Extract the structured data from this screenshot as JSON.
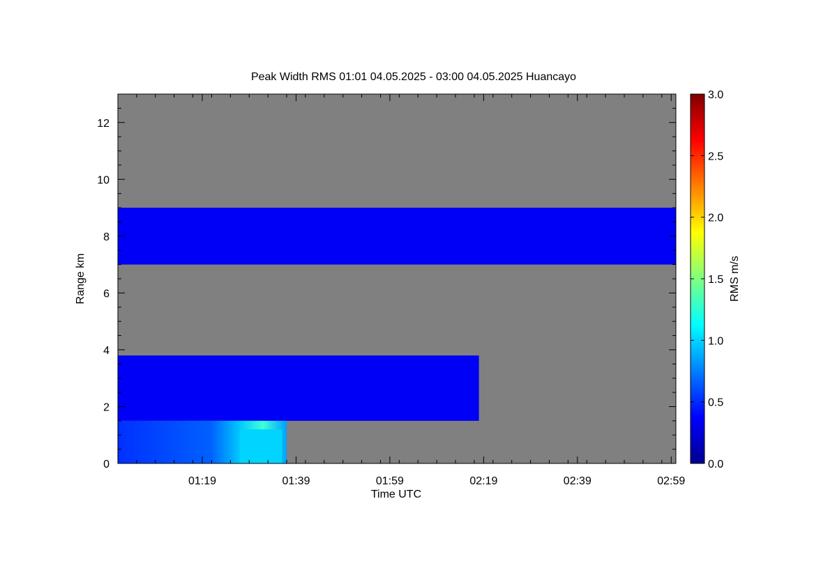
{
  "chart_data": {
    "type": "heatmap",
    "title": "Peak Width RMS   01:01 04.05.2025 - 03:00 04.05.2025 Huancayo",
    "xlabel": "Time UTC",
    "ylabel": "Range km",
    "colorbar_label": "RMS m/s",
    "background_color": "#808080",
    "xlim_minutes": [
      61,
      180
    ],
    "x_ticks": [
      {
        "label": "01:19",
        "minute": 79
      },
      {
        "label": "01:39",
        "minute": 99
      },
      {
        "label": "01:59",
        "minute": 119
      },
      {
        "label": "02:19",
        "minute": 139
      },
      {
        "label": "02:39",
        "minute": 159
      },
      {
        "label": "02:59",
        "minute": 179
      }
    ],
    "ylim": [
      0,
      13
    ],
    "y_ticks": [
      0,
      2,
      4,
      6,
      8,
      10,
      12
    ],
    "colorbar": {
      "range": [
        0.0,
        3.0
      ],
      "ticks": [
        "0.0",
        "0.5",
        "1.0",
        "1.5",
        "2.0",
        "2.5",
        "3.0"
      ],
      "colormap": "jet"
    },
    "regions": [
      {
        "name": "upper layer",
        "t_start": 61,
        "t_end": 180,
        "range_km": [
          7.0,
          9.0
        ],
        "rms": 0.35
      },
      {
        "name": "middle layer",
        "t_start": 61,
        "t_end": 138,
        "range_km": [
          1.5,
          3.8
        ],
        "rms": 0.35
      },
      {
        "name": "lower layer",
        "t_start": 61,
        "t_end": 97,
        "range_km": [
          0.0,
          1.5
        ],
        "rms": 0.45
      },
      {
        "name": "lower layer peak",
        "t_start": 87,
        "t_end": 96,
        "range_km": [
          0.0,
          1.2
        ],
        "rms": 1.0
      }
    ]
  }
}
